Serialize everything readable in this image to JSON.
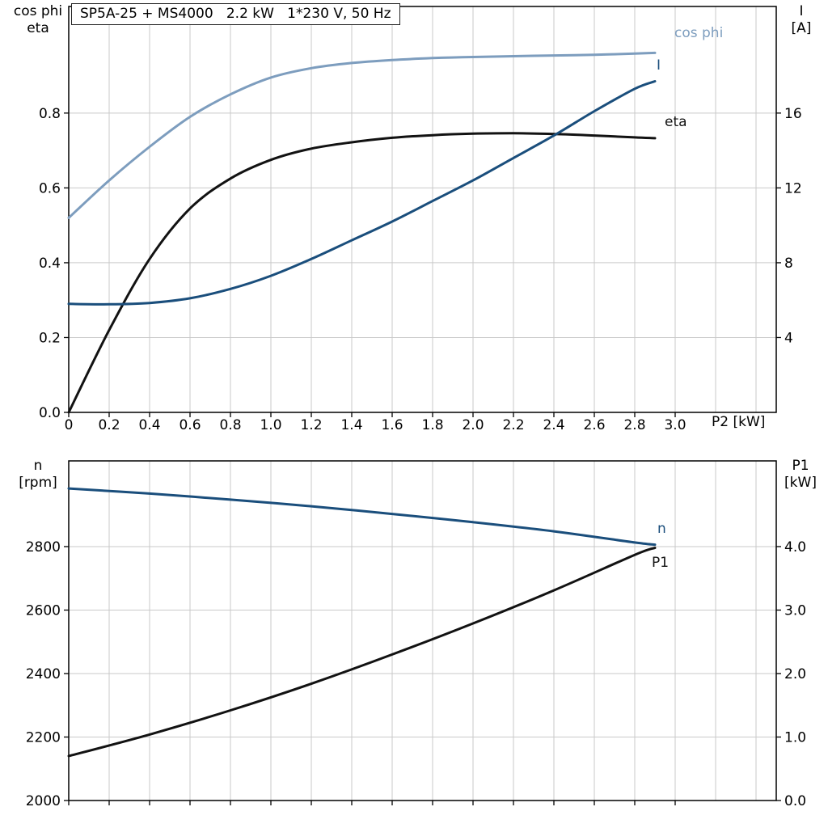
{
  "title_box": "SP5A-25 + MS4000   2.2 kW   1*230 V, 50 Hz",
  "colors": {
    "cos_phi_curve": "#7d9dbe",
    "dark_blue_curve": "#1a4e7c",
    "black_curve": "#121212"
  },
  "chart_data": [
    {
      "type": "line",
      "title": "SP5A-25 + MS4000   2.2 kW   1*230 V, 50 Hz",
      "xlabel": "P2 [kW]",
      "xlim": [
        0,
        3.5
      ],
      "grid_x": [
        0.2,
        0.4,
        0.6,
        0.8,
        1.0,
        1.2,
        1.4,
        1.6,
        1.8,
        2.0,
        2.2,
        2.4,
        2.6,
        2.8,
        3.0,
        3.2,
        3.4
      ],
      "xticks": {
        "values": [
          0,
          0.2,
          0.4,
          0.6,
          0.8,
          1.0,
          1.2,
          1.4,
          1.6,
          1.8,
          2.0,
          2.2,
          2.4,
          2.6,
          2.8,
          3.0
        ],
        "labels": [
          "0",
          "0.2",
          "0.4",
          "0.6",
          "0.8",
          "1.0",
          "1.2",
          "1.4",
          "1.6",
          "1.8",
          "2.0",
          "2.2",
          "2.4",
          "2.6",
          "2.8",
          "3.0"
        ]
      },
      "left_axis": {
        "label": [
          "cos phi",
          "eta"
        ],
        "lim": [
          0,
          1.085
        ],
        "ticks": [
          0,
          0.2,
          0.4,
          0.6,
          0.8
        ],
        "tick_labels": [
          "0.0",
          "0.2",
          "0.4",
          "0.6",
          "0.8"
        ]
      },
      "right_axis": {
        "label": [
          "I",
          "[A]"
        ],
        "lim": [
          0,
          21.7
        ],
        "ticks": [
          4,
          8,
          12,
          16
        ],
        "tick_labels": [
          "4",
          "8",
          "12",
          "16"
        ]
      },
      "series": [
        {
          "id": "cos-phi",
          "name": "cos phi",
          "axis": "left",
          "color": "#7d9dbe",
          "x": [
            0,
            0.2,
            0.4,
            0.6,
            0.8,
            1.0,
            1.2,
            1.4,
            1.6,
            1.8,
            2.0,
            2.2,
            2.4,
            2.6,
            2.8,
            2.9
          ],
          "y": [
            0.52,
            0.62,
            0.71,
            0.79,
            0.85,
            0.895,
            0.92,
            0.934,
            0.942,
            0.947,
            0.95,
            0.952,
            0.954,
            0.956,
            0.959,
            0.961
          ]
        },
        {
          "id": "eta",
          "name": "eta",
          "axis": "left",
          "color": "#121212",
          "x": [
            0,
            0.2,
            0.4,
            0.6,
            0.8,
            1.0,
            1.2,
            1.4,
            1.6,
            1.8,
            2.0,
            2.2,
            2.4,
            2.6,
            2.8,
            2.9
          ],
          "y": [
            0.0,
            0.22,
            0.41,
            0.545,
            0.625,
            0.675,
            0.705,
            0.722,
            0.734,
            0.741,
            0.745,
            0.746,
            0.744,
            0.74,
            0.735,
            0.733
          ]
        },
        {
          "id": "current",
          "name": "I",
          "axis": "right",
          "color": "#1a4e7c",
          "x": [
            0,
            0.2,
            0.4,
            0.6,
            0.8,
            1.0,
            1.2,
            1.4,
            1.6,
            1.8,
            2.0,
            2.2,
            2.4,
            2.6,
            2.8,
            2.9
          ],
          "y": [
            5.8,
            5.78,
            5.85,
            6.1,
            6.6,
            7.3,
            8.2,
            9.2,
            10.2,
            11.3,
            12.4,
            13.6,
            14.8,
            16.1,
            17.3,
            17.7
          ]
        }
      ]
    },
    {
      "type": "line",
      "title": "",
      "xlabel": "",
      "xlim": [
        0,
        3.5
      ],
      "grid_x": [
        0.2,
        0.4,
        0.6,
        0.8,
        1.0,
        1.2,
        1.4,
        1.6,
        1.8,
        2.0,
        2.2,
        2.4,
        2.6,
        2.8,
        3.0,
        3.2,
        3.4
      ],
      "xticks": {
        "values": [
          0,
          0.2,
          0.4,
          0.6,
          0.8,
          1.0,
          1.2,
          1.4,
          1.6,
          1.8,
          2.0,
          2.2,
          2.4,
          2.6,
          2.8,
          3.0
        ],
        "labels": []
      },
      "left_axis": {
        "label": [
          "n",
          "[rpm]"
        ],
        "lim": [
          2000,
          3070
        ],
        "ticks": [
          2000,
          2200,
          2400,
          2600,
          2800
        ],
        "tick_labels": [
          "2000",
          "2200",
          "2400",
          "2600",
          "2800"
        ]
      },
      "right_axis": {
        "label": [
          "P1",
          "[kW]"
        ],
        "lim": [
          0,
          5.35
        ],
        "ticks": [
          0,
          1,
          2,
          3,
          4
        ],
        "tick_labels": [
          "0.0",
          "1.0",
          "2.0",
          "3.0",
          "4.0"
        ]
      },
      "series": [
        {
          "id": "speed",
          "name": "n",
          "axis": "left",
          "color": "#1a4e7c",
          "x": [
            0,
            0.4,
            0.8,
            1.2,
            1.6,
            2.0,
            2.4,
            2.8,
            2.9
          ],
          "y": [
            2983,
            2967,
            2948,
            2927,
            2903,
            2877,
            2848,
            2813,
            2806
          ]
        },
        {
          "id": "p1",
          "name": "P1",
          "axis": "right",
          "color": "#121212",
          "x": [
            0,
            0.4,
            0.8,
            1.2,
            1.6,
            2.0,
            2.4,
            2.8,
            2.9
          ],
          "y": [
            0.7,
            1.04,
            1.42,
            1.84,
            2.3,
            2.79,
            3.31,
            3.87,
            3.98
          ]
        }
      ]
    }
  ]
}
